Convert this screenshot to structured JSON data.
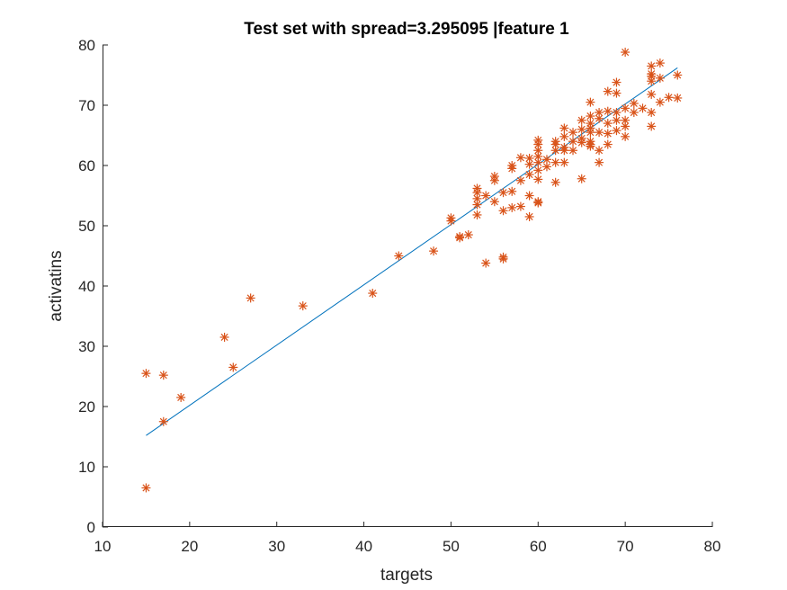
{
  "chart_data": {
    "type": "scatter",
    "title": "Test set with spread=3.295095 |feature 1",
    "xlabel": "targets",
    "ylabel": "activatins",
    "xlim": [
      10,
      80
    ],
    "ylim": [
      0,
      80
    ],
    "xticks": [
      10,
      20,
      30,
      40,
      50,
      60,
      70,
      80
    ],
    "yticks": [
      0,
      10,
      20,
      30,
      40,
      50,
      60,
      70,
      80
    ],
    "grid": false,
    "colors": {
      "points": "#d95319",
      "fit_line": "#0072bd",
      "axes": "#262626"
    },
    "marker": "asterisk",
    "fit_line": {
      "x": [
        15,
        76
      ],
      "y": [
        15.2,
        76.2
      ]
    },
    "points": [
      [
        15,
        6.5
      ],
      [
        15,
        25.5
      ],
      [
        17,
        25.2
      ],
      [
        17,
        17.5
      ],
      [
        19,
        21.5
      ],
      [
        24,
        31.5
      ],
      [
        25,
        26.5
      ],
      [
        27,
        38
      ],
      [
        33,
        36.7
      ],
      [
        41,
        38.8
      ],
      [
        44,
        45
      ],
      [
        48,
        45.8
      ],
      [
        50,
        50.8
      ],
      [
        50,
        51.3
      ],
      [
        51,
        48.2
      ],
      [
        51,
        48
      ],
      [
        52,
        48.5
      ],
      [
        53,
        51.8
      ],
      [
        53,
        53.5
      ],
      [
        53,
        54.5
      ],
      [
        53,
        55.5
      ],
      [
        53,
        56.2
      ],
      [
        54,
        43.8
      ],
      [
        54,
        55
      ],
      [
        55,
        54
      ],
      [
        55,
        57.5
      ],
      [
        55,
        58.2
      ],
      [
        56,
        44.8
      ],
      [
        56,
        44.5
      ],
      [
        56,
        52.5
      ],
      [
        56,
        55.5
      ],
      [
        57,
        53
      ],
      [
        57,
        55.7
      ],
      [
        57,
        59.5
      ],
      [
        57,
        60
      ],
      [
        58,
        53.2
      ],
      [
        58,
        57.5
      ],
      [
        58,
        61.3
      ],
      [
        59,
        51.5
      ],
      [
        59,
        55
      ],
      [
        59,
        58.5
      ],
      [
        59,
        60.2
      ],
      [
        59,
        61.2
      ],
      [
        60,
        53.8
      ],
      [
        60,
        54
      ],
      [
        60,
        57.7
      ],
      [
        60,
        59.2
      ],
      [
        60,
        60.5
      ],
      [
        60,
        61.5
      ],
      [
        60,
        62.5
      ],
      [
        60,
        63.5
      ],
      [
        60,
        64.2
      ],
      [
        61,
        59.8
      ],
      [
        61,
        61
      ],
      [
        62,
        57.2
      ],
      [
        62,
        60.5
      ],
      [
        62,
        62.5
      ],
      [
        62,
        63.5
      ],
      [
        62,
        64
      ],
      [
        63,
        60.5
      ],
      [
        63,
        62.5
      ],
      [
        63,
        63
      ],
      [
        63,
        64.8
      ],
      [
        63,
        66.2
      ],
      [
        64,
        62.5
      ],
      [
        64,
        64
      ],
      [
        64,
        65.5
      ],
      [
        65,
        57.8
      ],
      [
        65,
        63.8
      ],
      [
        65,
        64.5
      ],
      [
        65,
        66
      ],
      [
        65,
        67.5
      ],
      [
        66,
        63.2
      ],
      [
        66,
        63.5
      ],
      [
        66,
        64
      ],
      [
        66,
        65.5
      ],
      [
        66,
        66.2
      ],
      [
        66,
        67
      ],
      [
        66,
        68.2
      ],
      [
        66,
        70.5
      ],
      [
        67,
        60.5
      ],
      [
        67,
        62.5
      ],
      [
        67,
        65.5
      ],
      [
        67,
        67.8
      ],
      [
        67,
        68.8
      ],
      [
        68,
        63.5
      ],
      [
        68,
        65.3
      ],
      [
        68,
        67
      ],
      [
        68,
        69
      ],
      [
        68,
        72.3
      ],
      [
        69,
        65.8
      ],
      [
        69,
        67.5
      ],
      [
        69,
        68.8
      ],
      [
        69,
        72
      ],
      [
        69,
        73.8
      ],
      [
        70,
        64.8
      ],
      [
        70,
        66.5
      ],
      [
        70,
        67.5
      ],
      [
        70,
        69.5
      ],
      [
        70,
        78.8
      ],
      [
        71,
        68.8
      ],
      [
        71,
        70.3
      ],
      [
        72,
        69.5
      ],
      [
        73,
        66.5
      ],
      [
        73,
        68.8
      ],
      [
        73,
        71.8
      ],
      [
        73,
        74
      ],
      [
        73,
        74.8
      ],
      [
        73,
        75.2
      ],
      [
        73,
        76.5
      ],
      [
        74,
        70.5
      ],
      [
        74,
        74.5
      ],
      [
        74,
        77
      ],
      [
        75,
        71.3
      ],
      [
        76,
        71.2
      ],
      [
        76,
        75
      ]
    ]
  }
}
